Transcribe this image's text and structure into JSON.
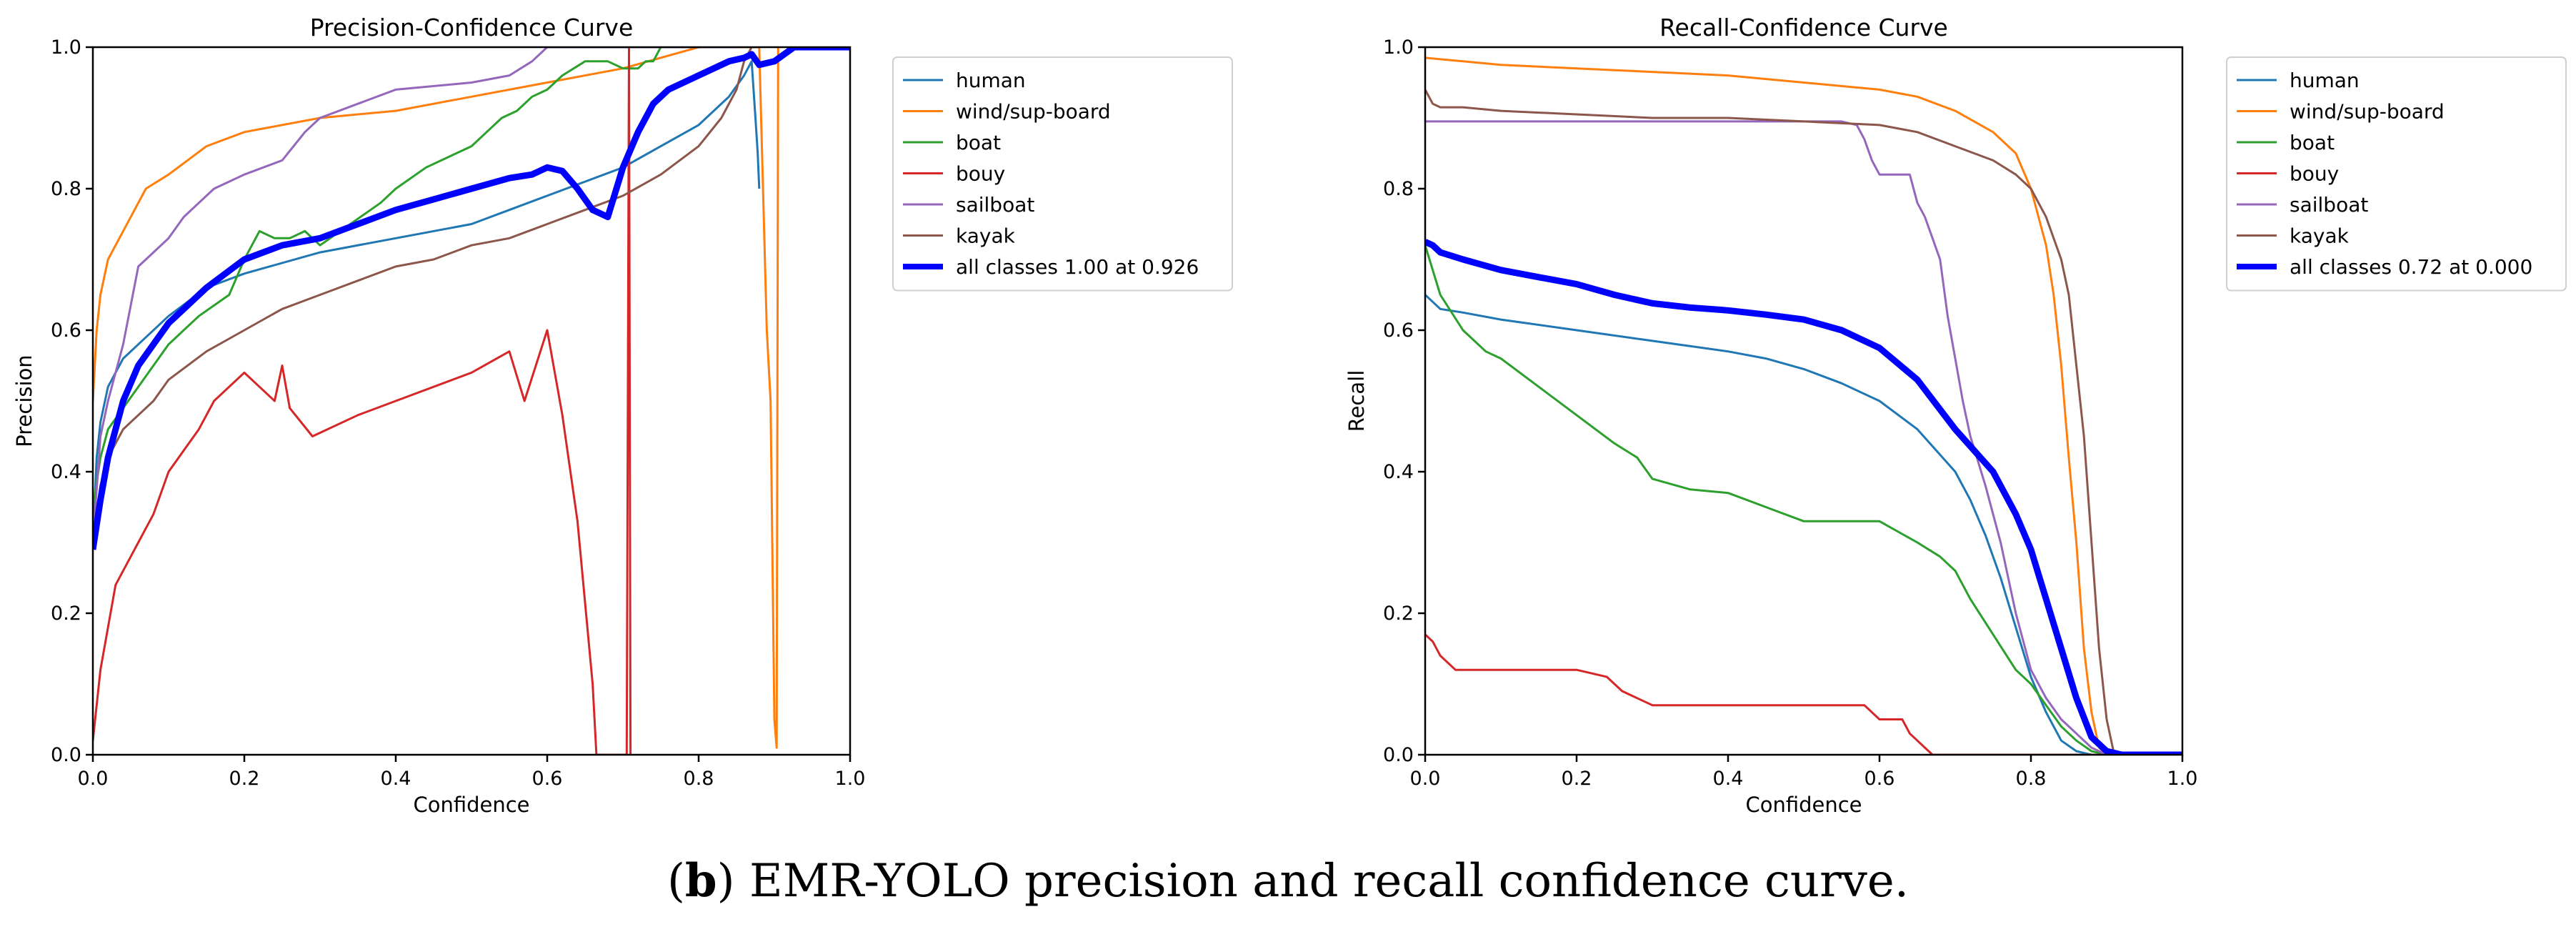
{
  "caption": {
    "label": "b",
    "open": "(",
    "close": ")",
    "text": " EMR-YOLO precision and recall confidence curve."
  },
  "colors": {
    "human": "#1f77b4",
    "wind/sup-board": "#ff7f0e",
    "boat": "#2ca02c",
    "bouy": "#d62728",
    "sailboat": "#9467bd",
    "kayak": "#8c564b",
    "all": "#0000ff"
  },
  "chart_data": [
    {
      "type": "line",
      "title": "Precision-Confidence Curve",
      "xlabel": "Confidence",
      "ylabel": "Precision",
      "xlim": [
        0,
        1
      ],
      "ylim": [
        0,
        1
      ],
      "xticks": [
        "0.0",
        "0.2",
        "0.4",
        "0.6",
        "0.8",
        "1.0"
      ],
      "yticks": [
        "0.0",
        "0.2",
        "0.4",
        "0.6",
        "0.8",
        "1.0"
      ],
      "legend_position": "outside-right",
      "series": [
        {
          "name": "human",
          "key": "human",
          "x": [
            0.0,
            0.005,
            0.01,
            0.02,
            0.04,
            0.06,
            0.1,
            0.15,
            0.2,
            0.3,
            0.4,
            0.5,
            0.55,
            0.6,
            0.65,
            0.7,
            0.75,
            0.8,
            0.84,
            0.86,
            0.87,
            0.875,
            0.878,
            0.88
          ],
          "y": [
            0.3,
            0.42,
            0.47,
            0.52,
            0.56,
            0.58,
            0.62,
            0.66,
            0.68,
            0.71,
            0.73,
            0.75,
            0.77,
            0.79,
            0.81,
            0.83,
            0.86,
            0.89,
            0.93,
            0.96,
            0.98,
            0.9,
            0.85,
            0.8
          ]
        },
        {
          "name": "wind/sup-board",
          "key": "wind/sup-board",
          "x": [
            0.0,
            0.005,
            0.01,
            0.02,
            0.04,
            0.07,
            0.1,
            0.15,
            0.2,
            0.3,
            0.4,
            0.5,
            0.6,
            0.7,
            0.8,
            0.85,
            0.87,
            0.88,
            0.89,
            0.895,
            0.9,
            0.903,
            0.905
          ],
          "y": [
            0.5,
            0.6,
            0.65,
            0.7,
            0.74,
            0.8,
            0.82,
            0.86,
            0.88,
            0.9,
            0.91,
            0.93,
            0.95,
            0.97,
            1.0,
            1.0,
            1.0,
            1.0,
            0.6,
            0.5,
            0.05,
            0.01,
            1.0
          ]
        },
        {
          "name": "boat",
          "key": "boat",
          "x": [
            0.0,
            0.01,
            0.02,
            0.04,
            0.06,
            0.08,
            0.1,
            0.14,
            0.18,
            0.2,
            0.22,
            0.24,
            0.26,
            0.28,
            0.3,
            0.34,
            0.38,
            0.4,
            0.44,
            0.48,
            0.5,
            0.52,
            0.54,
            0.56,
            0.58,
            0.6,
            0.62,
            0.65,
            0.68,
            0.7,
            0.72,
            0.73,
            0.74,
            0.75
          ],
          "y": [
            0.35,
            0.42,
            0.46,
            0.49,
            0.52,
            0.55,
            0.58,
            0.62,
            0.65,
            0.7,
            0.74,
            0.73,
            0.73,
            0.74,
            0.72,
            0.75,
            0.78,
            0.8,
            0.83,
            0.85,
            0.86,
            0.88,
            0.9,
            0.91,
            0.93,
            0.94,
            0.96,
            0.98,
            0.98,
            0.97,
            0.97,
            0.98,
            0.98,
            1.0
          ]
        },
        {
          "name": "bouy",
          "key": "bouy",
          "x": [
            0.0,
            0.01,
            0.02,
            0.03,
            0.04,
            0.05,
            0.06,
            0.07,
            0.08,
            0.09,
            0.1,
            0.12,
            0.14,
            0.16,
            0.18,
            0.2,
            0.22,
            0.24,
            0.25,
            0.26,
            0.29,
            0.35,
            0.4,
            0.5,
            0.55,
            0.57,
            0.6,
            0.62,
            0.64,
            0.66,
            0.665,
            0.67,
            0.68,
            0.69,
            0.7,
            0.705,
            0.708,
            0.71
          ],
          "y": [
            0.02,
            0.12,
            0.18,
            0.24,
            0.26,
            0.28,
            0.3,
            0.32,
            0.34,
            0.37,
            0.4,
            0.43,
            0.46,
            0.5,
            0.52,
            0.54,
            0.52,
            0.5,
            0.55,
            0.49,
            0.45,
            0.48,
            0.5,
            0.54,
            0.57,
            0.5,
            0.6,
            0.48,
            0.33,
            0.1,
            0.0,
            0.0,
            0.0,
            0.0,
            0.0,
            0.0,
            1.0,
            0.0
          ]
        },
        {
          "name": "sailboat",
          "key": "sailboat",
          "x": [
            0.0,
            0.01,
            0.02,
            0.04,
            0.06,
            0.08,
            0.1,
            0.12,
            0.14,
            0.16,
            0.18,
            0.2,
            0.25,
            0.28,
            0.3,
            0.35,
            0.4,
            0.5,
            0.55,
            0.58,
            0.6,
            0.62,
            0.65,
            0.7,
            0.75,
            0.8,
            0.85
          ],
          "y": [
            0.3,
            0.45,
            0.5,
            0.58,
            0.69,
            0.71,
            0.73,
            0.76,
            0.78,
            0.8,
            0.81,
            0.82,
            0.84,
            0.88,
            0.9,
            0.92,
            0.94,
            0.95,
            0.96,
            0.98,
            1.0,
            1.0,
            1.0,
            1.0,
            1.0,
            1.0,
            1.0
          ]
        },
        {
          "name": "kayak",
          "key": "kayak",
          "x": [
            0.0,
            0.01,
            0.02,
            0.04,
            0.06,
            0.08,
            0.1,
            0.15,
            0.2,
            0.25,
            0.3,
            0.35,
            0.4,
            0.45,
            0.5,
            0.55,
            0.6,
            0.65,
            0.7,
            0.75,
            0.8,
            0.83,
            0.85,
            0.86,
            0.87,
            0.88
          ],
          "y": [
            0.3,
            0.38,
            0.42,
            0.46,
            0.48,
            0.5,
            0.53,
            0.57,
            0.6,
            0.63,
            0.65,
            0.67,
            0.69,
            0.7,
            0.72,
            0.73,
            0.75,
            0.77,
            0.79,
            0.82,
            0.86,
            0.9,
            0.94,
            0.98,
            1.0,
            1.0
          ]
        },
        {
          "name": "all classes 1.00 at 0.926",
          "key": "all",
          "bold": true,
          "x": [
            0.0,
            0.01,
            0.02,
            0.04,
            0.06,
            0.08,
            0.1,
            0.15,
            0.2,
            0.25,
            0.3,
            0.35,
            0.4,
            0.45,
            0.5,
            0.55,
            0.58,
            0.6,
            0.62,
            0.64,
            0.66,
            0.68,
            0.7,
            0.72,
            0.74,
            0.76,
            0.8,
            0.84,
            0.86,
            0.87,
            0.88,
            0.9,
            0.926,
            1.0
          ],
          "y": [
            0.29,
            0.36,
            0.42,
            0.5,
            0.55,
            0.58,
            0.61,
            0.66,
            0.7,
            0.72,
            0.73,
            0.75,
            0.77,
            0.785,
            0.8,
            0.815,
            0.82,
            0.83,
            0.825,
            0.8,
            0.77,
            0.76,
            0.83,
            0.88,
            0.92,
            0.94,
            0.96,
            0.98,
            0.985,
            0.99,
            0.975,
            0.98,
            1.0,
            1.0
          ]
        }
      ]
    },
    {
      "type": "line",
      "title": "Recall-Confidence Curve",
      "xlabel": "Confidence",
      "ylabel": "Recall",
      "xlim": [
        0,
        1
      ],
      "ylim": [
        0,
        1
      ],
      "xticks": [
        "0.0",
        "0.2",
        "0.4",
        "0.6",
        "0.8",
        "1.0"
      ],
      "yticks": [
        "0.0",
        "0.2",
        "0.4",
        "0.6",
        "0.8",
        "1.0"
      ],
      "legend_position": "outside-right",
      "series": [
        {
          "name": "human",
          "key": "human",
          "x": [
            0.0,
            0.02,
            0.05,
            0.1,
            0.2,
            0.3,
            0.4,
            0.45,
            0.5,
            0.55,
            0.6,
            0.65,
            0.7,
            0.72,
            0.74,
            0.76,
            0.78,
            0.8,
            0.82,
            0.84,
            0.86,
            0.88,
            0.9,
            1.0
          ],
          "y": [
            0.65,
            0.63,
            0.625,
            0.615,
            0.6,
            0.585,
            0.57,
            0.56,
            0.545,
            0.525,
            0.5,
            0.46,
            0.4,
            0.36,
            0.31,
            0.25,
            0.18,
            0.11,
            0.06,
            0.02,
            0.005,
            0.0,
            0.0,
            0.0
          ]
        },
        {
          "name": "wind/sup-board",
          "key": "wind/sup-board",
          "x": [
            0.0,
            0.05,
            0.1,
            0.2,
            0.3,
            0.4,
            0.5,
            0.6,
            0.65,
            0.7,
            0.75,
            0.78,
            0.8,
            0.82,
            0.83,
            0.84,
            0.85,
            0.86,
            0.87,
            0.88,
            0.89,
            0.9,
            1.0
          ],
          "y": [
            0.985,
            0.98,
            0.975,
            0.97,
            0.965,
            0.96,
            0.95,
            0.94,
            0.93,
            0.91,
            0.88,
            0.85,
            0.8,
            0.72,
            0.65,
            0.55,
            0.42,
            0.3,
            0.15,
            0.06,
            0.01,
            0.0,
            0.0
          ]
        },
        {
          "name": "boat",
          "key": "boat",
          "x": [
            0.0,
            0.02,
            0.05,
            0.08,
            0.1,
            0.15,
            0.2,
            0.25,
            0.28,
            0.3,
            0.35,
            0.4,
            0.45,
            0.5,
            0.55,
            0.6,
            0.65,
            0.68,
            0.7,
            0.72,
            0.75,
            0.78,
            0.8,
            0.82,
            0.84,
            0.86,
            0.88,
            0.9
          ],
          "y": [
            0.72,
            0.65,
            0.6,
            0.57,
            0.56,
            0.52,
            0.48,
            0.44,
            0.42,
            0.39,
            0.375,
            0.37,
            0.35,
            0.33,
            0.33,
            0.33,
            0.3,
            0.28,
            0.26,
            0.22,
            0.17,
            0.12,
            0.1,
            0.07,
            0.04,
            0.02,
            0.005,
            0.0
          ]
        },
        {
          "name": "bouy",
          "key": "bouy",
          "x": [
            0.0,
            0.01,
            0.02,
            0.03,
            0.04,
            0.06,
            0.08,
            0.15,
            0.2,
            0.24,
            0.26,
            0.28,
            0.3,
            0.4,
            0.5,
            0.58,
            0.6,
            0.63,
            0.64,
            0.66,
            0.67,
            0.7,
            1.0
          ],
          "y": [
            0.17,
            0.16,
            0.14,
            0.13,
            0.12,
            0.12,
            0.12,
            0.12,
            0.12,
            0.11,
            0.09,
            0.08,
            0.07,
            0.07,
            0.07,
            0.07,
            0.05,
            0.05,
            0.03,
            0.01,
            0.0,
            0.0,
            0.0
          ]
        },
        {
          "name": "sailboat",
          "key": "sailboat",
          "x": [
            0.0,
            0.1,
            0.2,
            0.3,
            0.4,
            0.5,
            0.55,
            0.57,
            0.58,
            0.59,
            0.6,
            0.64,
            0.65,
            0.66,
            0.68,
            0.69,
            0.7,
            0.71,
            0.72,
            0.74,
            0.76,
            0.78,
            0.8,
            0.82,
            0.84,
            0.86,
            0.88,
            0.9
          ],
          "y": [
            0.895,
            0.895,
            0.895,
            0.895,
            0.895,
            0.895,
            0.895,
            0.89,
            0.87,
            0.84,
            0.82,
            0.82,
            0.78,
            0.76,
            0.7,
            0.62,
            0.56,
            0.5,
            0.45,
            0.38,
            0.3,
            0.2,
            0.12,
            0.08,
            0.05,
            0.03,
            0.01,
            0.0
          ]
        },
        {
          "name": "kayak",
          "key": "kayak",
          "x": [
            0.0,
            0.01,
            0.02,
            0.05,
            0.1,
            0.2,
            0.3,
            0.4,
            0.5,
            0.6,
            0.65,
            0.7,
            0.75,
            0.78,
            0.8,
            0.82,
            0.84,
            0.85,
            0.86,
            0.87,
            0.88,
            0.89,
            0.9,
            0.91,
            1.0
          ],
          "y": [
            0.94,
            0.92,
            0.915,
            0.915,
            0.91,
            0.905,
            0.9,
            0.9,
            0.895,
            0.89,
            0.88,
            0.86,
            0.84,
            0.82,
            0.8,
            0.76,
            0.7,
            0.65,
            0.55,
            0.45,
            0.3,
            0.15,
            0.05,
            0.0,
            0.0
          ]
        },
        {
          "name": "all classes 0.72 at 0.000",
          "key": "all",
          "bold": true,
          "x": [
            0.0,
            0.01,
            0.02,
            0.05,
            0.1,
            0.15,
            0.2,
            0.25,
            0.3,
            0.35,
            0.4,
            0.45,
            0.5,
            0.55,
            0.6,
            0.65,
            0.7,
            0.75,
            0.78,
            0.8,
            0.82,
            0.84,
            0.86,
            0.88,
            0.9,
            0.92,
            1.0
          ],
          "y": [
            0.725,
            0.72,
            0.71,
            0.7,
            0.685,
            0.675,
            0.665,
            0.65,
            0.638,
            0.632,
            0.628,
            0.622,
            0.615,
            0.6,
            0.575,
            0.53,
            0.46,
            0.4,
            0.34,
            0.29,
            0.22,
            0.15,
            0.08,
            0.025,
            0.005,
            0.0,
            0.0
          ]
        }
      ]
    }
  ]
}
